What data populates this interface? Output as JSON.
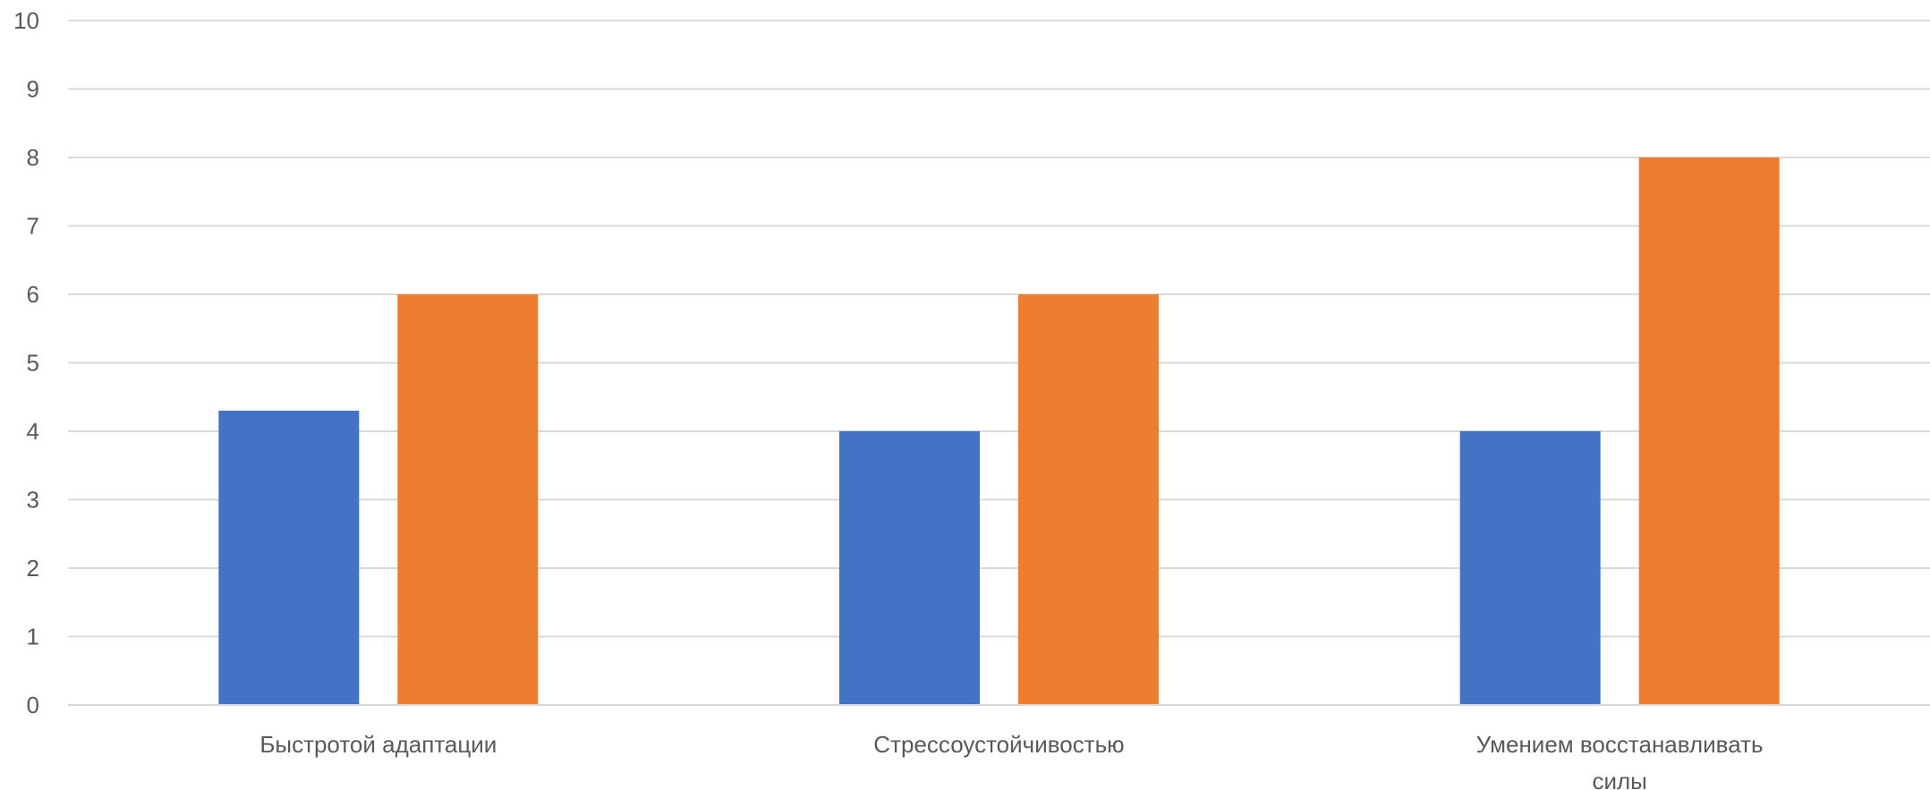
{
  "chart_data": {
    "type": "bar",
    "title": "",
    "xlabel": "",
    "ylabel": "",
    "ylim": [
      0,
      10
    ],
    "yticks": [
      0,
      1,
      2,
      3,
      4,
      5,
      6,
      7,
      8,
      9,
      10
    ],
    "grid": true,
    "legend": "none",
    "categories": [
      "Быстротой адаптации",
      "Стрессоустойчивостью",
      "Умением восстанавливать силы"
    ],
    "series": [
      {
        "values": [
          4.3,
          4,
          4
        ],
        "color": "#4472c4"
      },
      {
        "values": [
          6,
          6,
          8
        ],
        "color": "#ed7d31"
      }
    ]
  }
}
